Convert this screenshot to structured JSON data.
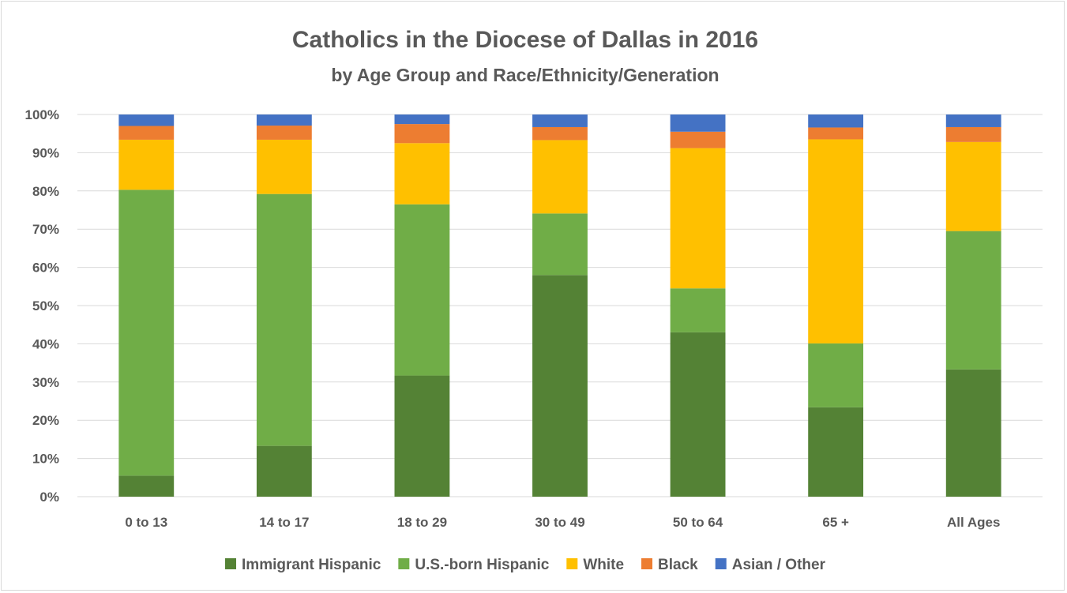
{
  "chart_data": {
    "type": "bar",
    "stacked": true,
    "title": "Catholics in the Diocese of Dallas in 2016",
    "subtitle": "by Age Group and Race/Ethnicity/Generation",
    "xlabel": "",
    "ylabel": "",
    "ylim": [
      0,
      100
    ],
    "y_ticks": [
      "0%",
      "10%",
      "20%",
      "30%",
      "40%",
      "50%",
      "60%",
      "70%",
      "80%",
      "90%",
      "100%"
    ],
    "grid": true,
    "legend_position": "bottom",
    "categories": [
      "0 to 13",
      "14 to 17",
      "18 to 29",
      "30 to 49",
      "50 to 64",
      "65 +",
      "All Ages"
    ],
    "series": [
      {
        "name": "Immigrant Hispanic",
        "color": "#548235",
        "values": [
          5.5,
          13.3,
          31.7,
          58.0,
          43.0,
          23.4,
          33.3
        ]
      },
      {
        "name": "U.S.-born Hispanic",
        "color": "#70AD47",
        "values": [
          74.8,
          65.9,
          44.8,
          16.1,
          11.5,
          16.7,
          36.2
        ]
      },
      {
        "name": "White",
        "color": "#FFC000",
        "values": [
          13.1,
          14.2,
          16.0,
          19.2,
          36.7,
          53.4,
          23.3
        ]
      },
      {
        "name": "Black",
        "color": "#ED7D31",
        "values": [
          3.6,
          3.7,
          5.0,
          3.4,
          4.3,
          3.1,
          3.9
        ]
      },
      {
        "name": "Asian / Other",
        "color": "#4472C4",
        "values": [
          3.0,
          2.9,
          2.5,
          3.3,
          4.5,
          3.4,
          3.3
        ]
      }
    ]
  }
}
